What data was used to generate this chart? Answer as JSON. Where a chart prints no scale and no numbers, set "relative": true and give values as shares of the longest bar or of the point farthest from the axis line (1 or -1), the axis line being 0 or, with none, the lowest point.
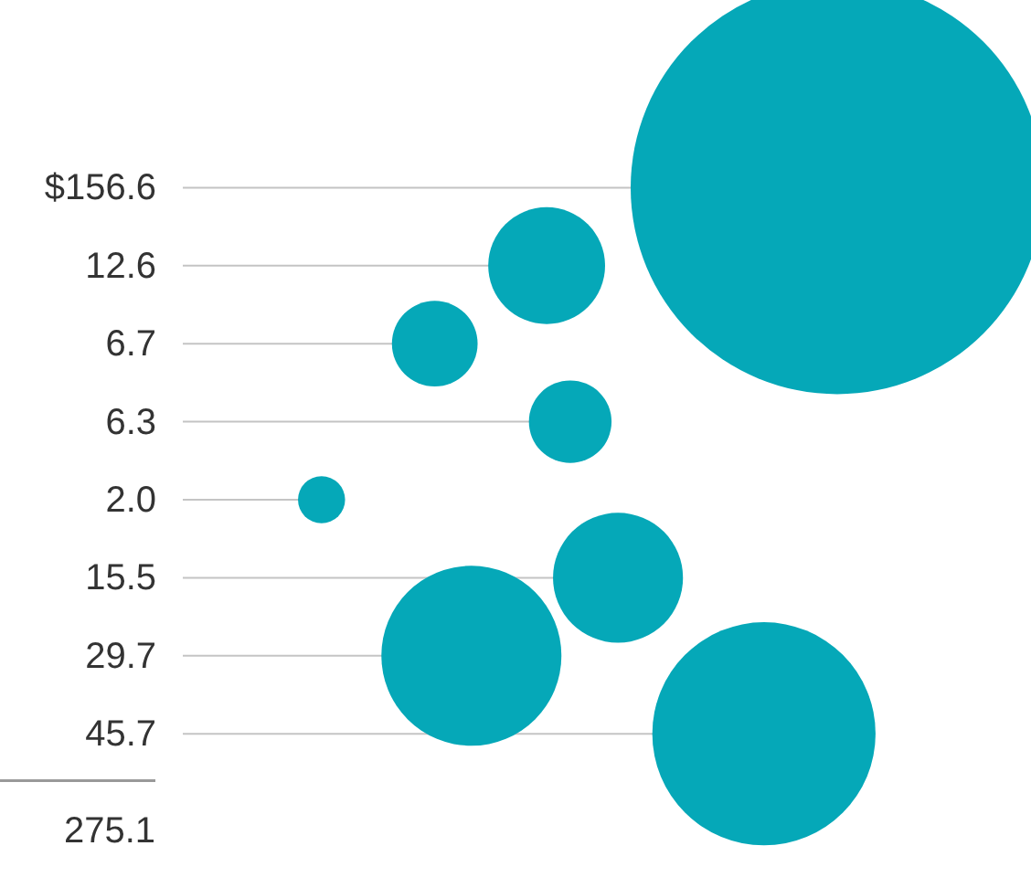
{
  "chart_data": {
    "type": "lollipop",
    "relative": true,
    "orientation": "horizontal",
    "categories": [
      "$156.6",
      "12.6",
      "6.7",
      "6.3",
      "2.0",
      "15.5",
      "29.7",
      "45.7"
    ],
    "values": [
      1,
      0.556,
      0.385,
      0.592,
      0.212,
      0.665,
      0.441,
      0.888
    ],
    "sizes": [
      1,
      0.08,
      0.043,
      0.04,
      0.013,
      0.099,
      0.19,
      0.292
    ],
    "color": "#05a8b8",
    "totals": [
      "275.1"
    ]
  }
}
